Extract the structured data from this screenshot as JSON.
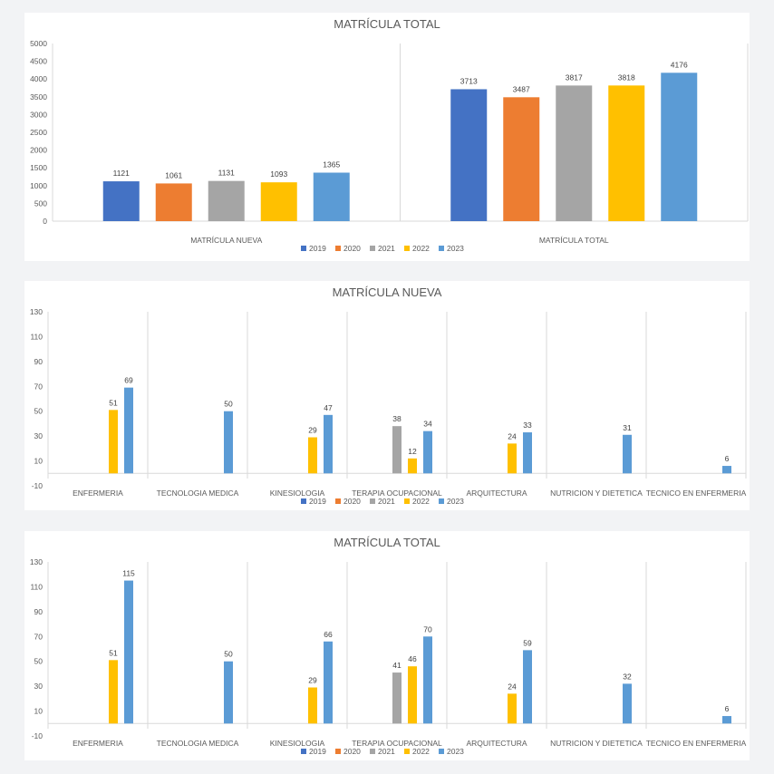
{
  "legend_labels": [
    "2019",
    "2020",
    "2021",
    "2022",
    "2023"
  ],
  "series_colors": [
    "#4472c4",
    "#ed7d31",
    "#a5a5a5",
    "#ffc000",
    "#5b9bd5"
  ],
  "chart_data": [
    {
      "type": "bar",
      "title": "MATRÍCULA TOTAL",
      "categories": [
        "MATRÍCULA NUEVA",
        "MATRÍCULA TOTAL"
      ],
      "series": [
        {
          "name": "2019",
          "values": [
            1121,
            3713
          ]
        },
        {
          "name": "2020",
          "values": [
            1061,
            3487
          ]
        },
        {
          "name": "2021",
          "values": [
            1131,
            3817
          ]
        },
        {
          "name": "2022",
          "values": [
            1093,
            3818
          ]
        },
        {
          "name": "2023",
          "values": [
            1365,
            4176
          ]
        }
      ],
      "ylim": [
        0,
        5000
      ],
      "yticks": [
        0,
        500,
        1000,
        1500,
        2000,
        2500,
        3000,
        3500,
        4000,
        4500,
        5000
      ],
      "legend": "bottom"
    },
    {
      "type": "bar",
      "title": "MATRÍCULA NUEVA",
      "categories": [
        "ENFERMERIA",
        "TECNOLOGIA MEDICA",
        "KINESIOLOGIA",
        "TERAPIA OCUPACIONAL",
        "ARQUITECTURA",
        "NUTRICION Y DIETETICA",
        "TECNICO EN ENFERMERIA"
      ],
      "series": [
        {
          "name": "2019",
          "values": [
            null,
            null,
            null,
            null,
            null,
            null,
            null
          ]
        },
        {
          "name": "2020",
          "values": [
            null,
            null,
            null,
            null,
            null,
            null,
            null
          ]
        },
        {
          "name": "2021",
          "values": [
            null,
            null,
            null,
            38,
            null,
            null,
            null
          ]
        },
        {
          "name": "2022",
          "values": [
            51,
            null,
            29,
            12,
            24,
            null,
            null
          ]
        },
        {
          "name": "2023",
          "values": [
            69,
            50,
            47,
            34,
            33,
            31,
            6
          ]
        }
      ],
      "ylim": [
        -10,
        130
      ],
      "yticks": [
        -10,
        10,
        30,
        50,
        70,
        90,
        110,
        130
      ],
      "legend": "bottom"
    },
    {
      "type": "bar",
      "title": "MATRÍCULA TOTAL",
      "categories": [
        "ENFERMERIA",
        "TECNOLOGIA MEDICA",
        "KINESIOLOGIA",
        "TERAPIA OCUPACIONAL",
        "ARQUITECTURA",
        "NUTRICION Y DIETETICA",
        "TECNICO EN ENFERMERIA"
      ],
      "series": [
        {
          "name": "2019",
          "values": [
            null,
            null,
            null,
            null,
            null,
            null,
            null
          ]
        },
        {
          "name": "2020",
          "values": [
            null,
            null,
            null,
            null,
            null,
            null,
            null
          ]
        },
        {
          "name": "2021",
          "values": [
            null,
            null,
            null,
            41,
            null,
            null,
            null
          ]
        },
        {
          "name": "2022",
          "values": [
            51,
            null,
            29,
            46,
            24,
            null,
            null
          ]
        },
        {
          "name": "2023",
          "values": [
            115,
            50,
            66,
            70,
            59,
            32,
            6
          ]
        }
      ],
      "ylim": [
        -10,
        130
      ],
      "yticks": [
        -10,
        10,
        30,
        50,
        70,
        90,
        110,
        130
      ],
      "legend": "bottom"
    }
  ]
}
